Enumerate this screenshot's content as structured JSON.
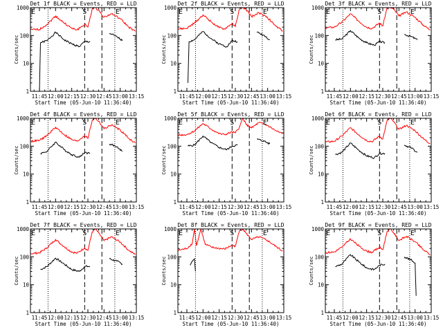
{
  "figure": {
    "panels": [
      {
        "title": "Det 1f BLACK = Events, RED = LLD"
      },
      {
        "title": "Det 2f BLACK = Events, RED = LLD"
      },
      {
        "title": "Det 3f BLACK = Events, RED = LLD"
      },
      {
        "title": "Det 4f BLACK = Events, RED = LLD"
      },
      {
        "title": "Det 5f BLACK = Events, RED = LLD"
      },
      {
        "title": "Det 6f BLACK = Events, RED = LLD"
      },
      {
        "title": "Det 7f BLACK = Events, RED = LLD"
      },
      {
        "title": "Det 8f BLACK = Events, RED = LLD"
      },
      {
        "title": "Det 9f BLACK = Events, RED = LLD"
      }
    ],
    "ylabel": "Counts/sec",
    "xlabel": "Start Time (05-Jun-10 11:36:40)",
    "x_tick_labels": [
      "11:45",
      "12:00",
      "12:15",
      "12:30",
      "12:45",
      "13:00",
      "13:15"
    ],
    "y_tick_labels": [
      "1",
      "10",
      "100",
      "1000"
    ],
    "markers": {
      "start": "E",
      "middle": "S",
      "end": "E"
    },
    "colors": {
      "events": "#000000",
      "lld": "#ff0000",
      "axes": "#000000"
    }
  },
  "chart_data": [
    {
      "type": "line",
      "title": "Det 1f BLACK = Events, RED = LLD",
      "xlabel": "Start Time (05-Jun-10 11:36:40)",
      "ylabel": "Counts/sec",
      "x_range": [
        "11:36:40",
        "13:15"
      ],
      "ylim": [
        1,
        1000
      ],
      "y_scale": "log",
      "dotted_lines": [
        "11:53",
        "12:55"
      ],
      "dashed_lines": [
        "12:27",
        "12:43"
      ],
      "series": [
        {
          "name": "BLACK = Events",
          "color": "#000000",
          "x": [
            "11:45",
            "11:46",
            "11:52",
            "12:00",
            "12:08",
            "12:15",
            "12:22",
            "12:27",
            "12:32",
            "12:43",
            "12:50",
            "12:57",
            "13:02"
          ],
          "y": [
            1,
            55,
            65,
            130,
            70,
            50,
            40,
            60,
            60,
            null,
            120,
            90,
            65
          ]
        },
        {
          "name": "RED = LLD",
          "color": "#ff0000",
          "x": [
            "11:36:40",
            "11:45",
            "11:52",
            "12:00",
            "12:08",
            "12:15",
            "12:20",
            "12:27",
            "12:30",
            "12:34",
            "12:37",
            "12:40",
            "12:45",
            "12:52",
            "13:00",
            "13:08",
            "13:14"
          ],
          "y": [
            160,
            165,
            250,
            500,
            280,
            180,
            160,
            250,
            200,
            900,
            1000,
            800,
            450,
            600,
            400,
            200,
            140
          ]
        }
      ]
    },
    {
      "type": "line",
      "title": "Det 2f BLACK = Events, RED = LLD",
      "xlabel": "Start Time (05-Jun-10 11:36:40)",
      "ylabel": "Counts/sec",
      "x_range": [
        "11:36:40",
        "13:15"
      ],
      "ylim": [
        1,
        1000
      ],
      "y_scale": "log",
      "dotted_lines": [
        "11:53",
        "12:55"
      ],
      "dashed_lines": [
        "12:27",
        "12:43"
      ],
      "series": [
        {
          "name": "BLACK = Events",
          "color": "#000000",
          "x": [
            "11:46",
            "11:47",
            "11:52",
            "12:00",
            "12:08",
            "12:15",
            "12:22",
            "12:27",
            "12:32",
            "12:43",
            "12:50",
            "12:57",
            "13:02"
          ],
          "y": [
            2,
            60,
            70,
            140,
            75,
            50,
            40,
            65,
            60,
            null,
            130,
            100,
            70
          ]
        },
        {
          "name": "RED = LLD",
          "color": "#ff0000",
          "x": [
            "11:36:40",
            "11:45",
            "11:52",
            "12:00",
            "12:08",
            "12:15",
            "12:20",
            "12:27",
            "12:30",
            "12:34",
            "12:37",
            "12:40",
            "12:45",
            "12:52",
            "13:00",
            "13:08",
            "13:14"
          ],
          "y": [
            170,
            180,
            280,
            550,
            300,
            190,
            170,
            270,
            210,
            950,
            1000,
            850,
            480,
            650,
            430,
            210,
            150
          ]
        }
      ]
    },
    {
      "type": "line",
      "title": "Det 3f BLACK = Events, RED = LLD",
      "xlabel": "Start Time (05-Jun-10 11:36:40)",
      "ylabel": "Counts/sec",
      "x_range": [
        "11:36:40",
        "13:15"
      ],
      "ylim": [
        1,
        1000
      ],
      "y_scale": "log",
      "dotted_lines": [
        "11:53",
        "12:55"
      ],
      "dashed_lines": [
        "12:27",
        "12:43"
      ],
      "series": [
        {
          "name": "BLACK = Events",
          "color": "#000000",
          "x": [
            "11:46",
            "11:52",
            "12:00",
            "12:08",
            "12:15",
            "12:22",
            "12:27",
            "12:32",
            "12:43",
            "12:50",
            "12:57",
            "13:02"
          ],
          "y": [
            70,
            75,
            150,
            80,
            55,
            45,
            60,
            55,
            null,
            110,
            90,
            70
          ]
        },
        {
          "name": "RED = LLD",
          "color": "#ff0000",
          "x": [
            "11:36:40",
            "11:45",
            "11:52",
            "12:00",
            "12:08",
            "12:15",
            "12:20",
            "12:27",
            "12:30",
            "12:34",
            "12:37",
            "12:40",
            "12:45",
            "12:52",
            "13:00",
            "13:08",
            "13:14"
          ],
          "y": [
            190,
            200,
            300,
            600,
            320,
            200,
            180,
            280,
            220,
            1000,
            1000,
            900,
            500,
            700,
            450,
            230,
            160
          ]
        }
      ]
    },
    {
      "type": "line",
      "title": "Det 4f BLACK = Events, RED = LLD",
      "xlabel": "Start Time (05-Jun-10 11:36:40)",
      "ylabel": "Counts/sec",
      "x_range": [
        "11:36:40",
        "13:15"
      ],
      "ylim": [
        1,
        1000
      ],
      "y_scale": "log",
      "dotted_lines": [
        "11:53",
        "12:55"
      ],
      "dashed_lines": [
        "12:27",
        "12:43"
      ],
      "series": [
        {
          "name": "BLACK = Events",
          "color": "#000000",
          "x": [
            "11:46",
            "11:52",
            "12:00",
            "12:08",
            "12:15",
            "12:22",
            "12:27",
            "12:32",
            "12:43",
            "12:50",
            "12:57",
            "13:02"
          ],
          "y": [
            55,
            65,
            140,
            75,
            50,
            40,
            60,
            55,
            null,
            120,
            95,
            65
          ]
        },
        {
          "name": "RED = LLD",
          "color": "#ff0000",
          "x": [
            "11:36:40",
            "11:45",
            "11:52",
            "12:00",
            "12:08",
            "12:15",
            "12:20",
            "12:27",
            "12:30",
            "12:34",
            "12:37",
            "12:40",
            "12:45",
            "12:52",
            "13:00",
            "13:08",
            "13:14"
          ],
          "y": [
            150,
            160,
            240,
            480,
            260,
            170,
            150,
            240,
            190,
            850,
            1000,
            780,
            420,
            580,
            380,
            190,
            130
          ]
        }
      ]
    },
    {
      "type": "line",
      "title": "Det 5f BLACK = Events, RED = LLD",
      "xlabel": "Start Time (05-Jun-10 11:36:40)",
      "ylabel": "Counts/sec",
      "x_range": [
        "11:36:40",
        "13:15"
      ],
      "ylim": [
        1,
        1000
      ],
      "y_scale": "log",
      "dotted_lines": [
        "11:53",
        "12:55"
      ],
      "dashed_lines": [
        "12:27",
        "12:43"
      ],
      "series": [
        {
          "name": "BLACK = Events",
          "color": "#000000",
          "x": [
            "11:46",
            "11:52",
            "12:00",
            "12:08",
            "12:15",
            "12:22",
            "12:27",
            "12:32",
            "12:43",
            "12:50",
            "12:57",
            "13:02"
          ],
          "y": [
            100,
            110,
            230,
            130,
            90,
            75,
            100,
            110,
            null,
            180,
            150,
            120
          ]
        },
        {
          "name": "RED = LLD",
          "color": "#ff0000",
          "x": [
            "11:36:40",
            "11:45",
            "11:52",
            "12:00",
            "12:08",
            "12:15",
            "12:20",
            "12:27",
            "12:30",
            "12:34",
            "12:37",
            "12:40",
            "12:45",
            "12:52",
            "13:00",
            "13:08",
            "13:14"
          ],
          "y": [
            250,
            260,
            350,
            650,
            400,
            280,
            260,
            320,
            300,
            500,
            1000,
            600,
            450,
            700,
            550,
            350,
            280
          ]
        }
      ]
    },
    {
      "type": "line",
      "title": "Det 6f BLACK = Events, RED = LLD",
      "xlabel": "Start Time (05-Jun-10 11:36:40)",
      "ylabel": "Counts/sec",
      "x_range": [
        "11:36:40",
        "13:15"
      ],
      "ylim": [
        1,
        1000
      ],
      "y_scale": "log",
      "dotted_lines": [
        "11:53",
        "12:55"
      ],
      "dashed_lines": [
        "12:27",
        "12:43"
      ],
      "series": [
        {
          "name": "BLACK = Events",
          "color": "#000000",
          "x": [
            "11:46",
            "11:52",
            "12:00",
            "12:08",
            "12:15",
            "12:22",
            "12:27",
            "12:32",
            "12:43",
            "12:50",
            "12:57",
            "13:02"
          ],
          "y": [
            50,
            60,
            130,
            70,
            45,
            38,
            55,
            55,
            null,
            110,
            85,
            60
          ]
        },
        {
          "name": "RED = LLD",
          "color": "#ff0000",
          "x": [
            "11:36:40",
            "11:45",
            "11:52",
            "12:00",
            "12:08",
            "12:15",
            "12:20",
            "12:27",
            "12:30",
            "12:34",
            "12:37",
            "12:40",
            "12:45",
            "12:52",
            "13:00",
            "13:08",
            "13:14"
          ],
          "y": [
            140,
            150,
            230,
            460,
            250,
            160,
            145,
            230,
            180,
            820,
            1000,
            760,
            400,
            560,
            360,
            180,
            125
          ]
        }
      ]
    },
    {
      "type": "line",
      "title": "Det 7f BLACK = Events, RED = LLD",
      "xlabel": "Start Time (05-Jun-10 11:36:40)",
      "ylabel": "Counts/sec",
      "x_range": [
        "11:36:40",
        "13:15"
      ],
      "ylim": [
        1,
        1000
      ],
      "y_scale": "log",
      "dotted_lines": [
        "11:53",
        "12:55"
      ],
      "dashed_lines": [
        "12:27",
        "12:43"
      ],
      "series": [
        {
          "name": "BLACK = Events",
          "color": "#000000",
          "x": [
            "11:46",
            "11:52",
            "12:00",
            "12:08",
            "12:15",
            "12:22",
            "12:27",
            "12:32",
            "12:43",
            "12:50",
            "12:57",
            "13:02"
          ],
          "y": [
            35,
            45,
            90,
            55,
            35,
            30,
            45,
            45,
            null,
            85,
            70,
            55
          ]
        },
        {
          "name": "RED = LLD",
          "color": "#ff0000",
          "x": [
            "11:36:40",
            "11:45",
            "11:52",
            "12:00",
            "12:08",
            "12:15",
            "12:20",
            "12:27",
            "12:30",
            "12:34",
            "12:37",
            "12:40",
            "12:45",
            "12:52",
            "13:00",
            "13:08",
            "13:14"
          ],
          "y": [
            130,
            140,
            210,
            420,
            230,
            150,
            135,
            210,
            170,
            780,
            1000,
            720,
            380,
            520,
            340,
            170,
            120
          ]
        }
      ]
    },
    {
      "type": "line",
      "title": "Det 8f BLACK = Events, RED = LLD",
      "xlabel": "Start Time (05-Jun-10 11:36:40)",
      "ylabel": "Counts/sec",
      "x_range": [
        "11:36:40",
        "13:15"
      ],
      "ylim": [
        1,
        1000
      ],
      "y_scale": "log",
      "dotted_lines": [
        "11:53",
        "12:55"
      ],
      "dashed_lines": [
        "12:27",
        "12:43"
      ],
      "series": [
        {
          "name": "BLACK = Events",
          "color": "#000000",
          "x": [
            "11:48",
            "11:50",
            "11:52",
            "11:53"
          ],
          "y": [
            50,
            70,
            85,
            30
          ]
        },
        {
          "name": "RED = LLD",
          "color": "#ff0000",
          "x": [
            "11:36:40",
            "11:45",
            "11:50",
            "11:52",
            "11:54",
            "11:58",
            "12:02",
            "12:08",
            "12:15",
            "12:20",
            "12:27",
            "12:30",
            "12:34",
            "12:37",
            "12:40",
            "12:45",
            "12:52",
            "13:00",
            "13:08",
            "13:14"
          ],
          "y": [
            170,
            200,
            300,
            1000,
            250,
            1000,
            280,
            220,
            200,
            190,
            260,
            240,
            900,
            1000,
            700,
            420,
            520,
            380,
            230,
            160
          ]
        }
      ]
    },
    {
      "type": "line",
      "title": "Det 9f BLACK = Events, RED = LLD",
      "xlabel": "Start Time (05-Jun-10 11:36:40)",
      "ylabel": "Counts/sec",
      "x_range": [
        "11:36:40",
        "13:15"
      ],
      "ylim": [
        1,
        1000
      ],
      "y_scale": "log",
      "dotted_lines": [
        "11:53",
        "12:55"
      ],
      "dashed_lines": [
        "12:27",
        "12:43"
      ],
      "series": [
        {
          "name": "BLACK = Events",
          "color": "#000000",
          "x": [
            "11:46",
            "11:52",
            "12:00",
            "12:08",
            "12:15",
            "12:22",
            "12:27",
            "12:32",
            "12:43",
            "12:50",
            "12:57",
            "13:00",
            "13:01"
          ],
          "y": [
            45,
            55,
            120,
            65,
            40,
            35,
            50,
            55,
            null,
            100,
            75,
            60,
            4
          ]
        },
        {
          "name": "RED = LLD",
          "color": "#ff0000",
          "x": [
            "11:36:40",
            "11:45",
            "11:52",
            "12:00",
            "12:08",
            "12:15",
            "12:20",
            "12:27",
            "12:30",
            "12:34",
            "12:37",
            "12:40",
            "12:45",
            "12:52",
            "13:00",
            "13:08",
            "13:14"
          ],
          "y": [
            140,
            150,
            220,
            440,
            240,
            160,
            145,
            220,
            180,
            800,
            1000,
            740,
            390,
            540,
            350,
            175,
            120
          ]
        }
      ]
    }
  ]
}
